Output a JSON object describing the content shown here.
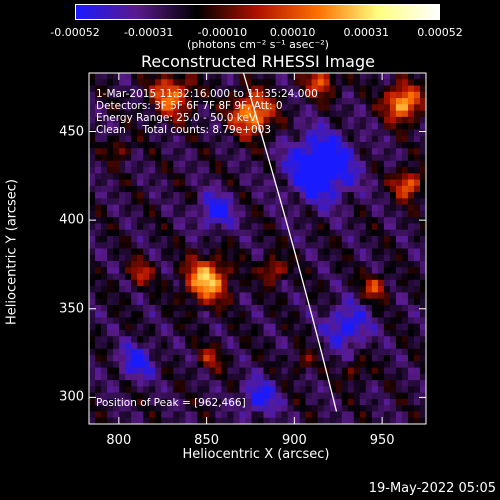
{
  "chart_data": {
    "type": "heatmap",
    "title": "Reconstructed RHESSI Image",
    "xlabel": "Heliocentric X (arcsec)",
    "ylabel": "Heliocentric Y (arcsec)",
    "xlim": [
      783,
      975
    ],
    "ylim": [
      285,
      483
    ],
    "x_ticks": [
      800,
      850,
      900,
      950
    ],
    "y_ticks": [
      300,
      350,
      400,
      450
    ],
    "colorbar": {
      "range": [
        -0.00052,
        0.00052
      ],
      "tick_labels": [
        "-0.00052",
        "-0.00031",
        "-0.00010",
        "0.00010",
        "0.00031",
        "0.00052"
      ],
      "tick_values": [
        -0.00052,
        -0.00031,
        -0.0001,
        0.0001,
        0.00031,
        0.00052
      ],
      "unit": "(photons cm⁻² s⁻¹ asec⁻²)",
      "colors": [
        "#1a1aff",
        "#5a1a8c",
        "#000000",
        "#b01000",
        "#ff7000",
        "#ffff80",
        "#ffffff"
      ]
    },
    "info": {
      "time": "1-Mar-2015 11:32:16.000 to 11:35:24.000",
      "detectors": "Detectors: 3F 5F 6F 7F 8F 9F, Att: 0",
      "energy": "Energy Range: 25.0 - 50.0 keV",
      "clean": "Clean     Total counts: 8.79e+003"
    },
    "peak_label": "Position of Peak = [962,466]",
    "blobs": [
      {
        "x": 850,
        "y": 366,
        "w": 12,
        "amp": 0.00052
      },
      {
        "x": 876,
        "y": 460,
        "w": 12,
        "amp": 0.00048
      },
      {
        "x": 962,
        "y": 466,
        "w": 10,
        "amp": 0.00052
      },
      {
        "x": 965,
        "y": 420,
        "w": 8,
        "amp": 0.0004
      },
      {
        "x": 830,
        "y": 470,
        "w": 12,
        "amp": 0.0004
      },
      {
        "x": 915,
        "y": 478,
        "w": 9,
        "amp": 0.00033
      },
      {
        "x": 888,
        "y": 372,
        "w": 7,
        "amp": 0.0003
      },
      {
        "x": 812,
        "y": 370,
        "w": 7,
        "amp": 0.00026
      },
      {
        "x": 946,
        "y": 362,
        "w": 7,
        "amp": 0.0003
      },
      {
        "x": 852,
        "y": 322,
        "w": 7,
        "amp": 0.00022
      },
      {
        "x": 935,
        "y": 315,
        "w": 6,
        "amp": 0.0002
      },
      {
        "x": 800,
        "y": 440,
        "w": 6,
        "amp": 0.00022
      },
      {
        "x": 905,
        "y": 320,
        "w": 6,
        "amp": 0.00018
      },
      {
        "x": 915,
        "y": 430,
        "w": 18,
        "amp": -0.00045
      },
      {
        "x": 855,
        "y": 405,
        "w": 10,
        "amp": -0.0003
      },
      {
        "x": 930,
        "y": 340,
        "w": 12,
        "amp": -0.0003
      },
      {
        "x": 810,
        "y": 320,
        "w": 10,
        "amp": -0.00028
      },
      {
        "x": 880,
        "y": 300,
        "w": 10,
        "amp": -0.00028
      }
    ]
  },
  "timestamp": "19-May-2022 05:05"
}
